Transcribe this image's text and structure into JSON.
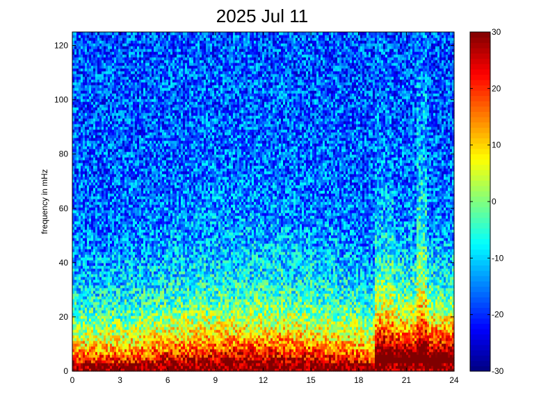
{
  "chart_data": {
    "type": "heatmap",
    "title": "2025 Jul 11",
    "xlabel": "",
    "ylabel": "frequency in mHz",
    "xlim": [
      0,
      24
    ],
    "ylim": [
      0,
      125
    ],
    "x_ticks": [
      "0",
      "3",
      "6",
      "9",
      "12",
      "15",
      "18",
      "21",
      "24"
    ],
    "y_ticks": [
      "0",
      "20",
      "40",
      "60",
      "80",
      "100",
      "120"
    ],
    "colorbar": {
      "range": [
        -30,
        30
      ],
      "ticks": [
        "30",
        "20",
        "10",
        "0",
        "-10",
        "-20",
        "-30"
      ],
      "colormap": "jet"
    },
    "value_model": {
      "description_of_trend": "spectral power (dB): highest at low frequencies, decreasing with frequency",
      "low_freq_band_value": 30,
      "high_freq_value": -18,
      "bursts": [
        {
          "x_start": 19.0,
          "x_end": 20.2,
          "max_freq": 70
        },
        {
          "x_start": 21.7,
          "x_end": 22.3,
          "max_freq": 125
        },
        {
          "x_start": 20.2,
          "x_end": 21.7,
          "max_freq": 45
        },
        {
          "x_start": 22.3,
          "x_end": 24.0,
          "max_freq": 40
        }
      ]
    }
  }
}
